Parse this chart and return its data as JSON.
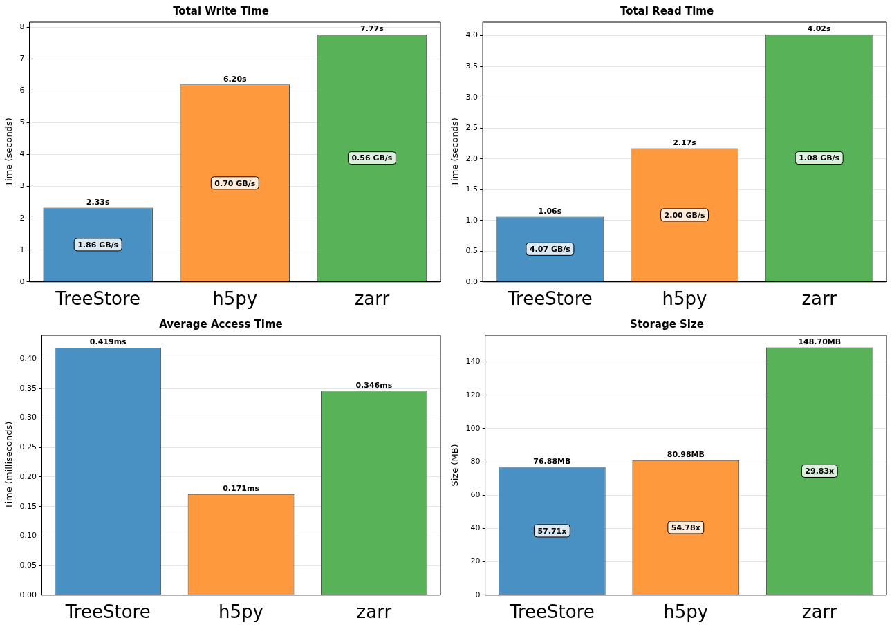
{
  "chart_data": [
    {
      "type": "bar",
      "title": "Total Write Time",
      "ylabel": "Time (seconds)",
      "categories": [
        "TreeStore",
        "h5py",
        "zarr"
      ],
      "values": [
        2.33,
        6.2,
        7.77
      ],
      "colors": [
        "#4a91c3",
        "#ff993e",
        "#58b257"
      ],
      "value_labels": [
        "2.33s",
        "6.20s",
        "7.77s"
      ],
      "ylim": [
        0,
        8.16
      ],
      "yticks": [
        0,
        1,
        2,
        3,
        4,
        5,
        6,
        7,
        8
      ],
      "grid": "y",
      "legend": false,
      "annotations": [
        "1.86 GB/s",
        "0.70 GB/s",
        "0.56 GB/s"
      ]
    },
    {
      "type": "bar",
      "title": "Total Read Time",
      "ylabel": "Time (seconds)",
      "categories": [
        "TreeStore",
        "h5py",
        "zarr"
      ],
      "values": [
        1.06,
        2.17,
        4.02
      ],
      "colors": [
        "#4a91c3",
        "#ff993e",
        "#58b257"
      ],
      "value_labels": [
        "1.06s",
        "2.17s",
        "4.02s"
      ],
      "ylim": [
        0,
        4.22
      ],
      "yticks": [
        {
          "value": 0,
          "label": "0.0"
        },
        {
          "value": 0.5,
          "label": "0.5"
        },
        {
          "value": 1,
          "label": "1.0"
        },
        {
          "value": 1.5,
          "label": "1.5"
        },
        {
          "value": 2,
          "label": "2.0"
        },
        {
          "value": 2.5,
          "label": "2.5"
        },
        {
          "value": 3,
          "label": "3.0"
        },
        {
          "value": 3.5,
          "label": "3.5"
        },
        {
          "value": 4,
          "label": "4.0"
        }
      ],
      "grid": "y",
      "legend": false,
      "annotations": [
        "4.07 GB/s",
        "2.00 GB/s",
        "1.08 GB/s"
      ]
    },
    {
      "type": "bar",
      "title": "Average Access Time",
      "ylabel": "Time (milliseconds)",
      "categories": [
        "TreeStore",
        "h5py",
        "zarr"
      ],
      "values": [
        0.419,
        0.171,
        0.346
      ],
      "colors": [
        "#4a91c3",
        "#ff993e",
        "#58b257"
      ],
      "value_labels": [
        "0.419ms",
        "0.171ms",
        "0.346ms"
      ],
      "ylim": [
        0,
        0.44
      ],
      "yticks": [
        {
          "value": 0,
          "label": "0.00"
        },
        {
          "value": 0.05,
          "label": "0.05"
        },
        {
          "value": 0.1,
          "label": "0.10"
        },
        {
          "value": 0.15,
          "label": "0.15"
        },
        {
          "value": 0.2,
          "label": "0.20"
        },
        {
          "value": 0.25,
          "label": "0.25"
        },
        {
          "value": 0.3,
          "label": "0.30"
        },
        {
          "value": 0.35,
          "label": "0.35"
        },
        {
          "value": 0.4,
          "label": "0.40"
        }
      ],
      "grid": "y",
      "legend": false
    },
    {
      "type": "bar",
      "title": "Storage Size",
      "ylabel": "Size (MB)",
      "categories": [
        "TreeStore",
        "h5py",
        "zarr"
      ],
      "values": [
        76.88,
        80.98,
        148.7
      ],
      "colors": [
        "#4a91c3",
        "#ff993e",
        "#58b257"
      ],
      "value_labels": [
        "76.88MB",
        "80.98MB",
        "148.70MB"
      ],
      "ylim": [
        0,
        156
      ],
      "yticks": [
        0,
        20,
        40,
        60,
        80,
        100,
        120,
        140
      ],
      "grid": "y",
      "legend": false,
      "annotations": [
        "57.71x",
        "54.78x",
        "29.83x"
      ]
    }
  ]
}
